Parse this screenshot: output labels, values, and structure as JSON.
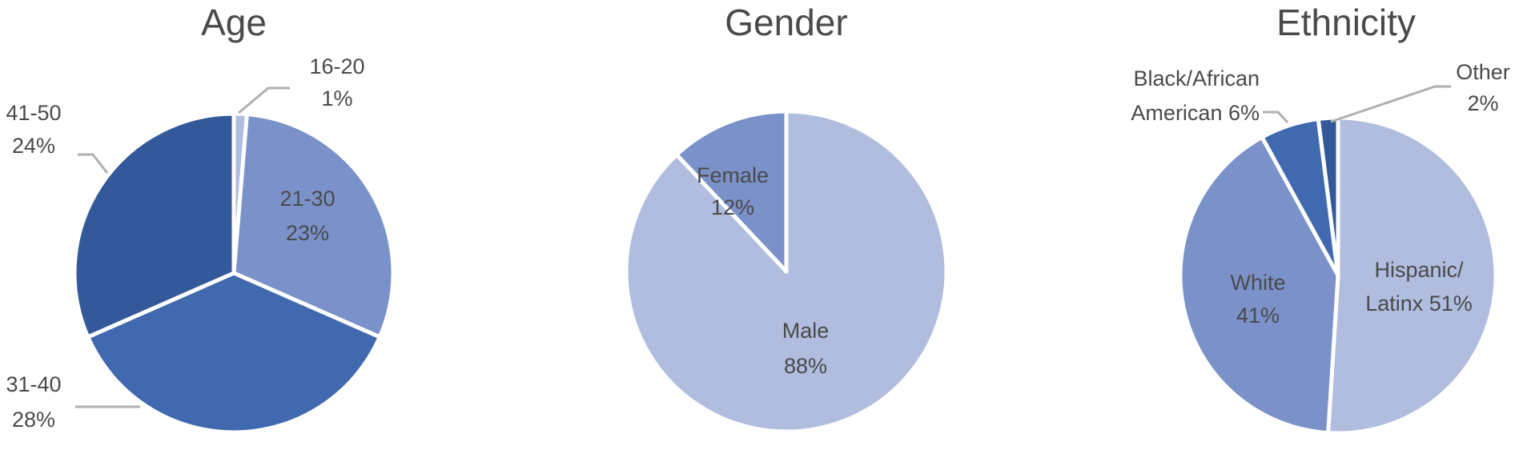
{
  "chart_data": [
    {
      "type": "pie",
      "title": "Age",
      "categories": [
        "16-20",
        "21-30",
        "31-40",
        "41-50"
      ],
      "values": [
        1,
        23,
        28,
        24
      ],
      "data_labels": [
        "1%",
        "23%",
        "28%",
        "24%"
      ],
      "colors": [
        "#b0bddf",
        "#7a91c9",
        "#4169b0",
        "#34599a"
      ]
    },
    {
      "type": "pie",
      "title": "Gender",
      "categories": [
        "Male",
        "Female"
      ],
      "values": [
        88,
        12
      ],
      "data_labels": [
        "88%",
        "12%"
      ],
      "colors": [
        "#b0bddf",
        "#7a91c9"
      ]
    },
    {
      "type": "pie",
      "title": "Ethnicity",
      "categories": [
        "Hispanic/ Latinx",
        "White",
        "Black/African American",
        "Other"
      ],
      "values": [
        51,
        41,
        6,
        2
      ],
      "data_labels": [
        "51%",
        "41%",
        "6%",
        "2%"
      ],
      "label_lines": [
        [
          "Hispanic/",
          "Latinx 51%"
        ],
        [
          "White",
          "41%"
        ],
        [
          "Black/African",
          "American 6%"
        ],
        [
          "Other",
          "2%"
        ]
      ],
      "colors": [
        "#b0bddf",
        "#7a91c9",
        "#4169b0",
        "#34599a"
      ]
    }
  ]
}
